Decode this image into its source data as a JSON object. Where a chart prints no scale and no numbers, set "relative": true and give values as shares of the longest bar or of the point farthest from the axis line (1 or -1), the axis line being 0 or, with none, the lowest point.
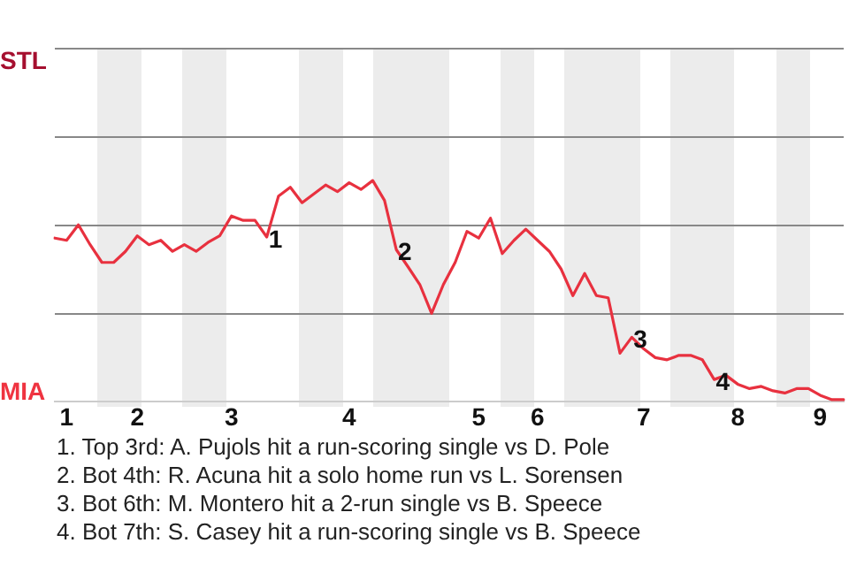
{
  "chart_data": {
    "type": "line",
    "relative": true,
    "categories": [
      null,
      "1",
      null,
      null,
      null,
      null,
      null,
      "2",
      null,
      null,
      null,
      null,
      null,
      null,
      null,
      "3",
      null,
      null,
      null,
      null,
      null,
      null,
      null,
      null,
      null,
      "4",
      null,
      null,
      null,
      null,
      null,
      null,
      null,
      null,
      null,
      null,
      "5",
      null,
      null,
      null,
      null,
      "6",
      null,
      null,
      null,
      null,
      null,
      null,
      null,
      null,
      "7",
      null,
      null,
      null,
      null,
      null,
      null,
      null,
      "8",
      null,
      null,
      null,
      null,
      null,
      null,
      "9",
      null,
      null
    ],
    "series": [
      {
        "color": "#e8313f",
        "values": [
          0.74,
          0.73,
          0.8,
          0.71,
          0.63,
          0.63,
          0.68,
          0.75,
          0.71,
          0.73,
          0.68,
          0.71,
          0.68,
          0.72,
          0.75,
          0.84,
          0.82,
          0.82,
          0.745,
          0.93,
          0.97,
          0.9,
          0.94,
          0.98,
          0.95,
          0.99,
          0.96,
          1,
          0.91,
          0.688,
          0.61,
          0.53,
          0.4,
          0.53,
          0.63,
          0.77,
          0.74,
          0.83,
          0.67,
          0.73,
          0.78,
          0.73,
          0.68,
          0.6,
          0.48,
          0.58,
          0.48,
          0.47,
          0.22,
          0.292,
          0.24,
          0.2,
          0.19,
          0.21,
          0.21,
          0.19,
          0.101,
          0.12,
          0.08,
          0.06,
          0.07,
          0.05,
          0.04,
          0.06,
          0.06,
          0.03,
          0.01,
          0.01
        ]
      }
    ],
    "ref_lines": [
      {
        "axis": "y",
        "value": 0.4,
        "color": "#888888"
      },
      {
        "axis": "y",
        "value": 0.8,
        "color": "#888888"
      },
      {
        "axis": "y",
        "value": 1.2,
        "color": "#888888"
      },
      {
        "axis": "y",
        "value": 1.6,
        "color": "#888888"
      }
    ],
    "legend": false,
    "marker": "none",
    "line_style": "solid",
    "annotations": [
      "STL",
      "MIA",
      {
        "text": "1",
        "y": 0.745
      },
      {
        "text": "2",
        "y": 0.688
      },
      {
        "text": "3",
        "y": 0.292
      },
      {
        "text": "4",
        "y": 0.101
      },
      "1. Top 3rd: A. Pujols hit a run-scoring single vs D. Pole",
      "2. Bot 4th: R. Acuna hit a solo home run vs L. Sorensen",
      "3. Bot 6th: M. Montero hit a 2-run single vs B. Speece",
      "4. Bot 7th: S. Casey hit a run-scoring single vs B. Speece"
    ]
  }
}
